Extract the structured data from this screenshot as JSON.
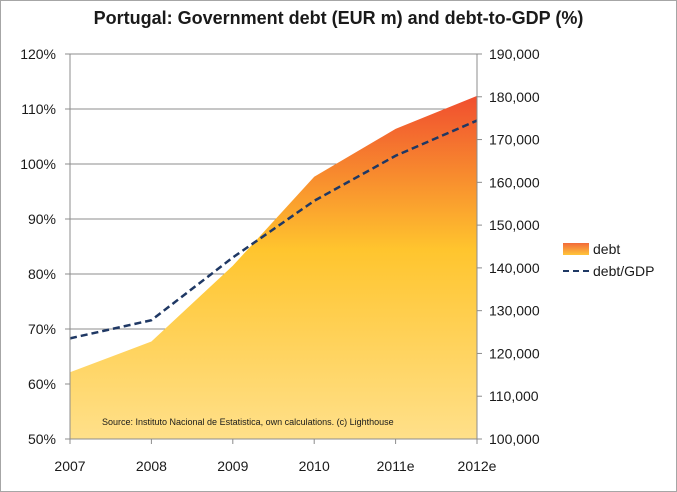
{
  "chart_data": {
    "type": "area",
    "title": "Portugal: Government debt (EUR m) and debt-to-GDP (%)",
    "categories": [
      "2007",
      "2008",
      "2009",
      "2010",
      "2011e",
      "2012e"
    ],
    "left_axis": {
      "ticks": [
        "50%",
        "60%",
        "70%",
        "80%",
        "90%",
        "100%",
        "110%",
        "120%"
      ],
      "ylim": [
        50,
        120
      ]
    },
    "right_axis": {
      "ticks": [
        "100,000",
        "110,000",
        "120,000",
        "130,000",
        "140,000",
        "150,000",
        "160,000",
        "170,000",
        "180,000",
        "190,000"
      ],
      "ylim": [
        100000,
        190000
      ]
    },
    "series": [
      {
        "name": "debt",
        "type": "area",
        "axis": "right",
        "values": [
          115600,
          122800,
          140500,
          161300,
          172500,
          180200
        ]
      },
      {
        "name": "debt/GDP",
        "type": "line",
        "axis": "left",
        "style": "dashed",
        "values": [
          68.3,
          71.6,
          83.0,
          93.3,
          101.5,
          107.9
        ]
      }
    ],
    "annotation": "Source: Instituto Nacional de Estatistica, own calculations. (c) Lighthouse",
    "legend_position": "right",
    "grid": true,
    "colors": {
      "area_top": "#f04e2f",
      "area_mid": "#ffc52e",
      "area_bottom": "#ffe08a",
      "line": "#1f3864",
      "grid": "#8c8c8c"
    }
  }
}
